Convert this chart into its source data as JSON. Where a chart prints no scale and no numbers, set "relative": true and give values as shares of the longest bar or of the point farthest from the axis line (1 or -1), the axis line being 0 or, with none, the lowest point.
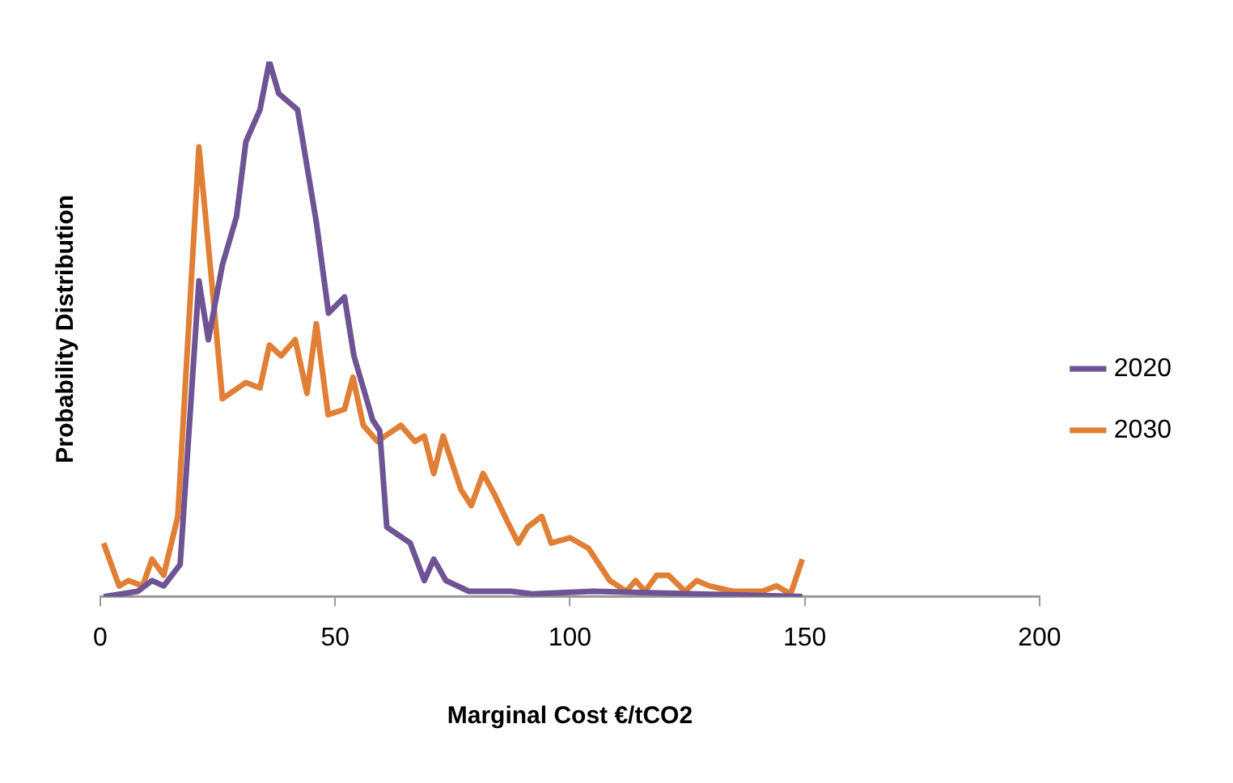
{
  "chart_data": {
    "type": "line",
    "xlabel": "Marginal Cost €/tCO2",
    "ylabel": "Probability Distribution",
    "relative": true,
    "xlim": [
      0,
      200
    ],
    "xticks": [
      0,
      50,
      100,
      150,
      200
    ],
    "grid": false,
    "legend": "right",
    "marker": "none",
    "line_style": "solid",
    "series": [
      {
        "name": "2020",
        "color": "#6e5494",
        "x": [
          0.7,
          8,
          11,
          13.5,
          17,
          21,
          23,
          26,
          29,
          31,
          34,
          36,
          38,
          42,
          46,
          48.6,
          52,
          54,
          58,
          59.5,
          61,
          66,
          69,
          71,
          73.6,
          78.5,
          87.5,
          92,
          105,
          149.5
        ],
        "values": [
          0,
          0.01,
          0.03,
          0.02,
          0.06,
          0.59,
          0.48,
          0.62,
          0.71,
          0.85,
          0.91,
          1,
          0.94,
          0.91,
          0.7,
          0.53,
          0.56,
          0.45,
          0.33,
          0.31,
          0.13,
          0.1,
          0.03,
          0.07,
          0.03,
          0.01,
          0.01,
          0.005,
          0.01,
          0
        ]
      },
      {
        "name": "2030",
        "color": "#e07f35",
        "x": [
          0.7,
          4,
          6,
          9,
          11,
          13.5,
          16.5,
          21,
          23.5,
          26,
          31,
          34,
          36,
          38.5,
          41.5,
          44,
          46,
          48.5,
          52,
          53.8,
          56,
          59,
          64,
          67,
          69,
          71,
          73,
          76.8,
          79,
          81.5,
          84,
          86.7,
          89,
          91,
          94,
          96,
          100,
          104,
          108.5,
          112,
          114,
          116,
          118.5,
          121,
          124.5,
          127,
          129.7,
          134.6,
          141,
          144,
          147,
          149.5
        ],
        "values": [
          0.1,
          0.02,
          0.03,
          0.02,
          0.07,
          0.04,
          0.15,
          0.84,
          0.61,
          0.37,
          0.4,
          0.39,
          0.47,
          0.45,
          0.48,
          0.38,
          0.51,
          0.34,
          0.35,
          0.41,
          0.32,
          0.29,
          0.32,
          0.29,
          0.3,
          0.23,
          0.3,
          0.2,
          0.17,
          0.23,
          0.19,
          0.14,
          0.1,
          0.13,
          0.15,
          0.1,
          0.11,
          0.09,
          0.03,
          0.01,
          0.03,
          0.01,
          0.04,
          0.04,
          0.01,
          0.03,
          0.02,
          0.01,
          0.01,
          0.02,
          0.005,
          0.07
        ]
      }
    ]
  }
}
